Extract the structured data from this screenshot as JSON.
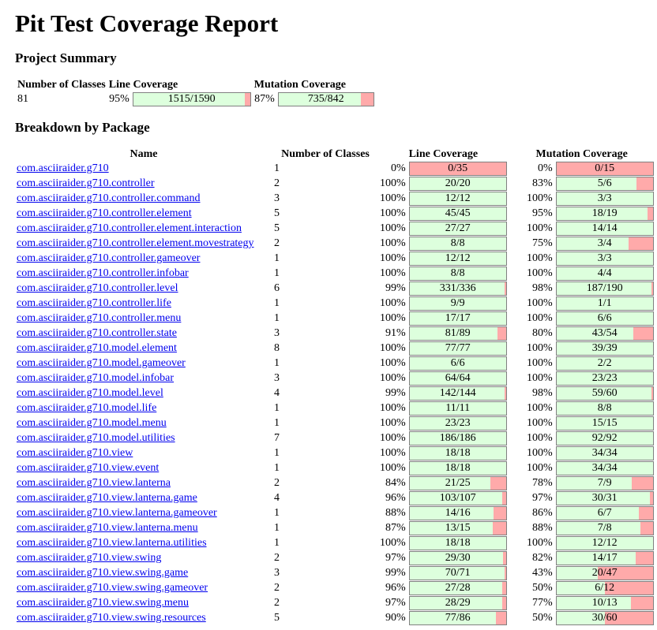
{
  "title": "Pit Test Coverage Report",
  "project_summary": {
    "heading": "Project Summary",
    "headers": {
      "classes": "Number of Classes",
      "line": "Line Coverage",
      "mutation": "Mutation Coverage"
    },
    "classes": "81",
    "line_pct": "95%",
    "line_legend": "1515/1590",
    "line_fraction": 0.9528,
    "mutation_pct": "87%",
    "mutation_legend": "735/842",
    "mutation_fraction": 0.8729
  },
  "breakdown": {
    "heading": "Breakdown by Package",
    "headers": {
      "name": "Name",
      "classes": "Number of Classes",
      "line": "Line Coverage",
      "mutation": "Mutation Coverage"
    },
    "packages": [
      {
        "name": "com.asciiraider.g710",
        "classes": "1",
        "line_pct": "0%",
        "line": "0/35",
        "line_fraction": 0,
        "mut_pct": "0%",
        "mut": "0/15",
        "mut_fraction": 0
      },
      {
        "name": "com.asciiraider.g710.controller",
        "classes": "2",
        "line_pct": "100%",
        "line": "20/20",
        "line_fraction": 1,
        "mut_pct": "83%",
        "mut": "5/6",
        "mut_fraction": 0.8333
      },
      {
        "name": "com.asciiraider.g710.controller.command",
        "classes": "3",
        "line_pct": "100%",
        "line": "12/12",
        "line_fraction": 1,
        "mut_pct": "100%",
        "mut": "3/3",
        "mut_fraction": 1
      },
      {
        "name": "com.asciiraider.g710.controller.element",
        "classes": "5",
        "line_pct": "100%",
        "line": "45/45",
        "line_fraction": 1,
        "mut_pct": "95%",
        "mut": "18/19",
        "mut_fraction": 0.9474
      },
      {
        "name": "com.asciiraider.g710.controller.element.interaction",
        "classes": "5",
        "line_pct": "100%",
        "line": "27/27",
        "line_fraction": 1,
        "mut_pct": "100%",
        "mut": "14/14",
        "mut_fraction": 1
      },
      {
        "name": "com.asciiraider.g710.controller.element.movestrategy",
        "classes": "2",
        "line_pct": "100%",
        "line": "8/8",
        "line_fraction": 1,
        "mut_pct": "75%",
        "mut": "3/4",
        "mut_fraction": 0.75
      },
      {
        "name": "com.asciiraider.g710.controller.gameover",
        "classes": "1",
        "line_pct": "100%",
        "line": "12/12",
        "line_fraction": 1,
        "mut_pct": "100%",
        "mut": "3/3",
        "mut_fraction": 1
      },
      {
        "name": "com.asciiraider.g710.controller.infobar",
        "classes": "1",
        "line_pct": "100%",
        "line": "8/8",
        "line_fraction": 1,
        "mut_pct": "100%",
        "mut": "4/4",
        "mut_fraction": 1
      },
      {
        "name": "com.asciiraider.g710.controller.level",
        "classes": "6",
        "line_pct": "99%",
        "line": "331/336",
        "line_fraction": 0.9851,
        "mut_pct": "98%",
        "mut": "187/190",
        "mut_fraction": 0.9842
      },
      {
        "name": "com.asciiraider.g710.controller.life",
        "classes": "1",
        "line_pct": "100%",
        "line": "9/9",
        "line_fraction": 1,
        "mut_pct": "100%",
        "mut": "1/1",
        "mut_fraction": 1
      },
      {
        "name": "com.asciiraider.g710.controller.menu",
        "classes": "1",
        "line_pct": "100%",
        "line": "17/17",
        "line_fraction": 1,
        "mut_pct": "100%",
        "mut": "6/6",
        "mut_fraction": 1
      },
      {
        "name": "com.asciiraider.g710.controller.state",
        "classes": "3",
        "line_pct": "91%",
        "line": "81/89",
        "line_fraction": 0.9101,
        "mut_pct": "80%",
        "mut": "43/54",
        "mut_fraction": 0.7963
      },
      {
        "name": "com.asciiraider.g710.model.element",
        "classes": "8",
        "line_pct": "100%",
        "line": "77/77",
        "line_fraction": 1,
        "mut_pct": "100%",
        "mut": "39/39",
        "mut_fraction": 1
      },
      {
        "name": "com.asciiraider.g710.model.gameover",
        "classes": "1",
        "line_pct": "100%",
        "line": "6/6",
        "line_fraction": 1,
        "mut_pct": "100%",
        "mut": "2/2",
        "mut_fraction": 1
      },
      {
        "name": "com.asciiraider.g710.model.infobar",
        "classes": "3",
        "line_pct": "100%",
        "line": "64/64",
        "line_fraction": 1,
        "mut_pct": "100%",
        "mut": "23/23",
        "mut_fraction": 1
      },
      {
        "name": "com.asciiraider.g710.model.level",
        "classes": "4",
        "line_pct": "99%",
        "line": "142/144",
        "line_fraction": 0.9861,
        "mut_pct": "98%",
        "mut": "59/60",
        "mut_fraction": 0.9833
      },
      {
        "name": "com.asciiraider.g710.model.life",
        "classes": "1",
        "line_pct": "100%",
        "line": "11/11",
        "line_fraction": 1,
        "mut_pct": "100%",
        "mut": "8/8",
        "mut_fraction": 1
      },
      {
        "name": "com.asciiraider.g710.model.menu",
        "classes": "1",
        "line_pct": "100%",
        "line": "23/23",
        "line_fraction": 1,
        "mut_pct": "100%",
        "mut": "15/15",
        "mut_fraction": 1
      },
      {
        "name": "com.asciiraider.g710.model.utilities",
        "classes": "7",
        "line_pct": "100%",
        "line": "186/186",
        "line_fraction": 1,
        "mut_pct": "100%",
        "mut": "92/92",
        "mut_fraction": 1
      },
      {
        "name": "com.asciiraider.g710.view",
        "classes": "1",
        "line_pct": "100%",
        "line": "18/18",
        "line_fraction": 1,
        "mut_pct": "100%",
        "mut": "34/34",
        "mut_fraction": 1
      },
      {
        "name": "com.asciiraider.g710.view.event",
        "classes": "1",
        "line_pct": "100%",
        "line": "18/18",
        "line_fraction": 1,
        "mut_pct": "100%",
        "mut": "34/34",
        "mut_fraction": 1
      },
      {
        "name": "com.asciiraider.g710.view.lanterna",
        "classes": "2",
        "line_pct": "84%",
        "line": "21/25",
        "line_fraction": 0.84,
        "mut_pct": "78%",
        "mut": "7/9",
        "mut_fraction": 0.7778
      },
      {
        "name": "com.asciiraider.g710.view.lanterna.game",
        "classes": "4",
        "line_pct": "96%",
        "line": "103/107",
        "line_fraction": 0.9626,
        "mut_pct": "97%",
        "mut": "30/31",
        "mut_fraction": 0.9677
      },
      {
        "name": "com.asciiraider.g710.view.lanterna.gameover",
        "classes": "1",
        "line_pct": "88%",
        "line": "14/16",
        "line_fraction": 0.875,
        "mut_pct": "86%",
        "mut": "6/7",
        "mut_fraction": 0.8571
      },
      {
        "name": "com.asciiraider.g710.view.lanterna.menu",
        "classes": "1",
        "line_pct": "87%",
        "line": "13/15",
        "line_fraction": 0.8667,
        "mut_pct": "88%",
        "mut": "7/8",
        "mut_fraction": 0.875
      },
      {
        "name": "com.asciiraider.g710.view.lanterna.utilities",
        "classes": "1",
        "line_pct": "100%",
        "line": "18/18",
        "line_fraction": 1,
        "mut_pct": "100%",
        "mut": "12/12",
        "mut_fraction": 1
      },
      {
        "name": "com.asciiraider.g710.view.swing",
        "classes": "2",
        "line_pct": "97%",
        "line": "29/30",
        "line_fraction": 0.9667,
        "mut_pct": "82%",
        "mut": "14/17",
        "mut_fraction": 0.8235
      },
      {
        "name": "com.asciiraider.g710.view.swing.game",
        "classes": "3",
        "line_pct": "99%",
        "line": "70/71",
        "line_fraction": 0.9859,
        "mut_pct": "43%",
        "mut": "20/47",
        "mut_fraction": 0.4255
      },
      {
        "name": "com.asciiraider.g710.view.swing.gameover",
        "classes": "2",
        "line_pct": "96%",
        "line": "27/28",
        "line_fraction": 0.9643,
        "mut_pct": "50%",
        "mut": "6/12",
        "mut_fraction": 0.5
      },
      {
        "name": "com.asciiraider.g710.view.swing.menu",
        "classes": "2",
        "line_pct": "97%",
        "line": "28/29",
        "line_fraction": 0.9655,
        "mut_pct": "77%",
        "mut": "10/13",
        "mut_fraction": 0.7692
      },
      {
        "name": "com.asciiraider.g710.view.swing.resources",
        "classes": "5",
        "line_pct": "90%",
        "line": "77/86",
        "line_fraction": 0.8953,
        "mut_pct": "50%",
        "mut": "30/60",
        "mut_fraction": 0.5
      }
    ]
  },
  "colors": {
    "covered": "#ddffdd",
    "uncovered": "#ffaaaa",
    "link": "#0000ee"
  }
}
